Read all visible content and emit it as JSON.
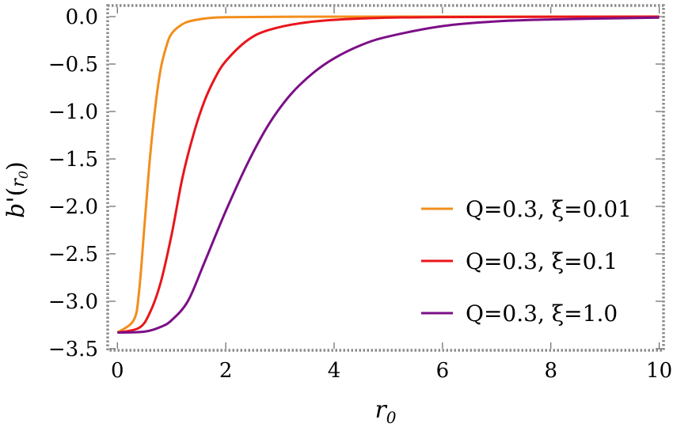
{
  "chart_data": {
    "type": "line",
    "title": "",
    "xlabel": "r0",
    "ylabel": "b'(r0)",
    "xlim": [
      -0.15,
      10.05
    ],
    "ylim": [
      -3.5,
      0.1
    ],
    "xticks": [
      0,
      2,
      4,
      6,
      8,
      10
    ],
    "xtick_labels": [
      "0",
      "2",
      "4",
      "6",
      "8",
      "10"
    ],
    "yticks": [
      0.0,
      -0.5,
      -1.0,
      -1.5,
      -2.0,
      -2.5,
      -3.0,
      -3.5
    ],
    "ytick_labels": [
      "0.0",
      "−0.5",
      "−1.0",
      "−1.5",
      "−2.0",
      "−2.5",
      "−3.0",
      "−3.5"
    ],
    "grid": false,
    "legend_position": "right",
    "series": [
      {
        "name": "Q=0.3, ξ=0.01",
        "color": "#f28e1c",
        "x": [
          0.0,
          0.3,
          0.4,
          0.5,
          0.6,
          0.7,
          0.8,
          0.9,
          1.0,
          1.2,
          1.4,
          1.7,
          2.0,
          3.0,
          5.0,
          10.0
        ],
        "y": [
          -3.33,
          -3.2,
          -2.9,
          -2.2,
          -1.5,
          -0.95,
          -0.55,
          -0.32,
          -0.18,
          -0.08,
          -0.04,
          -0.015,
          -0.007,
          -0.002,
          0.0,
          0.0
        ]
      },
      {
        "name": "Q=0.3, ξ=0.1",
        "color": "#e8161b",
        "x": [
          0.0,
          0.4,
          0.6,
          0.8,
          1.0,
          1.2,
          1.4,
          1.6,
          1.8,
          2.0,
          2.4,
          2.8,
          3.5,
          4.5,
          6.0,
          10.0
        ],
        "y": [
          -3.33,
          -3.28,
          -3.12,
          -2.8,
          -2.3,
          -1.7,
          -1.25,
          -0.9,
          -0.65,
          -0.47,
          -0.25,
          -0.14,
          -0.06,
          -0.02,
          -0.005,
          0.0
        ]
      },
      {
        "name": "Q=0.3, ξ=1.0",
        "color": "#7b0f87",
        "x": [
          0.0,
          0.5,
          0.8,
          1.0,
          1.3,
          1.6,
          2.0,
          2.4,
          2.8,
          3.2,
          3.6,
          4.0,
          4.5,
          5.0,
          6.0,
          7.0,
          8.0,
          10.0
        ],
        "y": [
          -3.33,
          -3.32,
          -3.27,
          -3.2,
          -3.0,
          -2.6,
          -2.05,
          -1.55,
          -1.13,
          -0.82,
          -0.6,
          -0.44,
          -0.3,
          -0.21,
          -0.1,
          -0.05,
          -0.03,
          -0.01
        ]
      }
    ]
  }
}
